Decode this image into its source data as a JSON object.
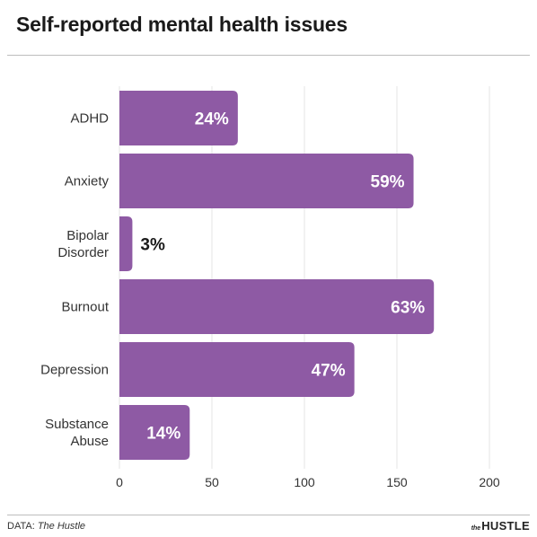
{
  "title": "Self-reported mental health issues",
  "footer": {
    "source_prefix": "DATA: ",
    "source_name": "The Hustle",
    "logo_the": "the",
    "logo_main": "HUSTLE"
  },
  "colors": {
    "bar": "#8e5aa4",
    "label_inside": "#ffffff",
    "label_outside": "#1a1a1a",
    "grid": "#e6e6e6"
  },
  "chart_data": {
    "type": "bar",
    "orientation": "horizontal",
    "categories": [
      [
        "ADHD"
      ],
      [
        "Anxiety"
      ],
      [
        "Bipolar",
        "Disorder"
      ],
      [
        "Burnout"
      ],
      [
        "Depression"
      ],
      [
        "Substance",
        "Abuse"
      ]
    ],
    "values": [
      64,
      159,
      7,
      170,
      127,
      38
    ],
    "data_labels": [
      "24%",
      "59%",
      "3%",
      "63%",
      "47%",
      "14%"
    ],
    "xlim": [
      0,
      200
    ],
    "xticks": [
      0,
      50,
      100,
      150,
      200
    ],
    "grid": true,
    "legend": "none"
  }
}
